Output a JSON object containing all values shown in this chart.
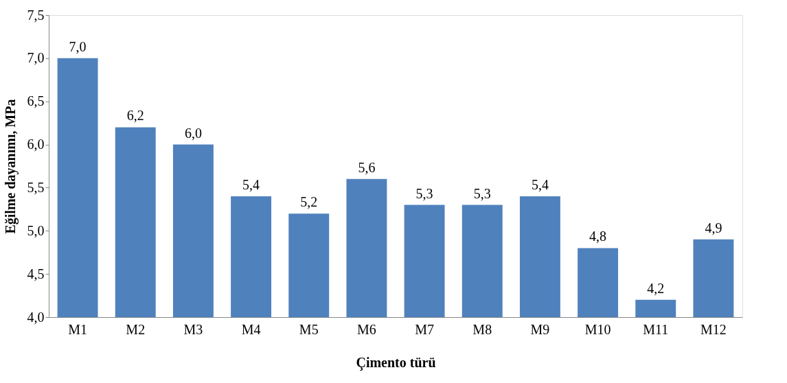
{
  "chart_data": {
    "type": "bar",
    "xlabel": "Çimento türü",
    "ylabel": "Eğilme dayanımı, MPa",
    "categories": [
      "M1",
      "M2",
      "M3",
      "M4",
      "M5",
      "M6",
      "M7",
      "M8",
      "M9",
      "M10",
      "M11",
      "M12"
    ],
    "values": [
      7.0,
      6.2,
      6.0,
      5.4,
      5.2,
      5.6,
      5.3,
      5.3,
      5.4,
      4.8,
      4.2,
      4.9
    ],
    "value_labels": [
      "7,0",
      "6,2",
      "6,0",
      "5,4",
      "5,2",
      "5,6",
      "5,3",
      "5,3",
      "5,4",
      "4,8",
      "4,2",
      "4,9"
    ],
    "color": "#4f81bd",
    "ylim": [
      4.0,
      7.5
    ],
    "yticks": [
      {
        "value": 4.0,
        "label": "4,0"
      },
      {
        "value": 4.5,
        "label": "4,5"
      },
      {
        "value": 5.0,
        "label": "5,0"
      },
      {
        "value": 5.5,
        "label": "5,5"
      },
      {
        "value": 6.0,
        "label": "6,0"
      },
      {
        "value": 6.5,
        "label": "6,5"
      },
      {
        "value": 7.0,
        "label": "7,0"
      },
      {
        "value": 7.5,
        "label": "7,5"
      }
    ],
    "grid": false
  }
}
